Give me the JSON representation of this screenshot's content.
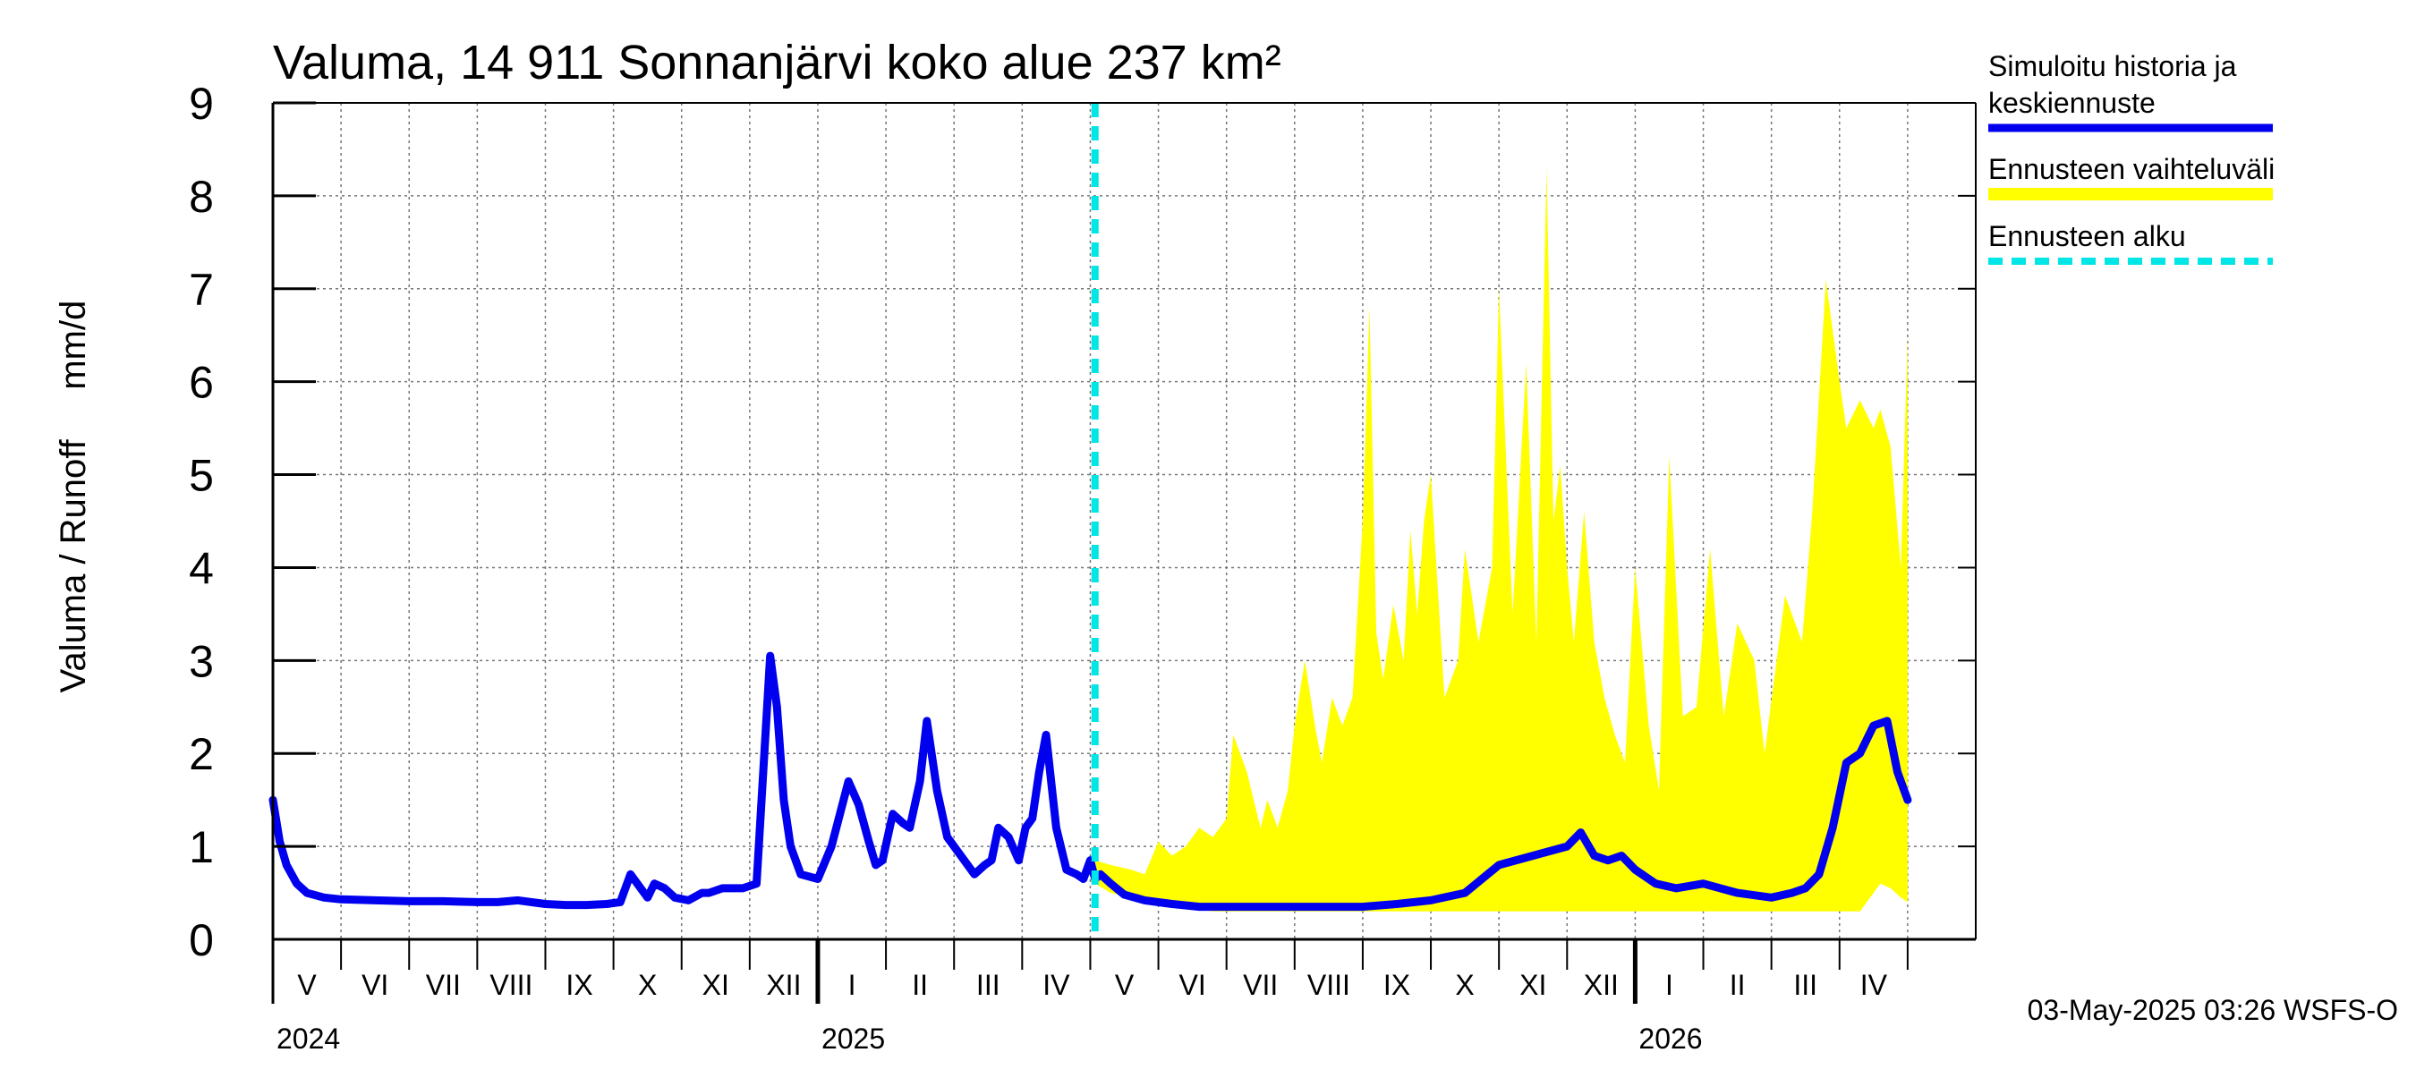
{
  "chart_data": {
    "type": "line",
    "title": "Valuma, 14 911 Sonnanjärvi koko alue 237 km²",
    "ylabel": "Valuma / Runoff     mm/d",
    "xlabel": "",
    "ylim": [
      0,
      9
    ],
    "y_ticks": [
      "0",
      "1",
      "2",
      "3",
      "4",
      "5",
      "6",
      "7",
      "8",
      "9"
    ],
    "grid": true,
    "legend_position": "right",
    "x_range_months": [
      0,
      25
    ],
    "month_labels": [
      "V",
      "VI",
      "VII",
      "VIII",
      "IX",
      "X",
      "XI",
      "XII",
      "I",
      "II",
      "III",
      "IV",
      "V",
      "VI",
      "VII",
      "VIII",
      "IX",
      "X",
      "XI",
      "XII",
      "I",
      "II",
      "III",
      "IV"
    ],
    "year_labels": [
      {
        "label": "2024",
        "month": 0
      },
      {
        "label": "2025",
        "month": 8
      },
      {
        "label": "2026",
        "month": 20
      }
    ],
    "forecast_start_month": 12.07,
    "colors": {
      "history": "#0000ee",
      "band": "#ffff00",
      "forecast_start": "#00e5e5"
    },
    "legend": {
      "history_line1": "Simuloitu historia ja",
      "history_line2": "keskiennuste",
      "band": "Ennusteen vaihteluväli",
      "start": "Ennusteen alku"
    },
    "footer": "03-May-2025 03:26 WSFS-O",
    "series": [
      {
        "name": "Simuloitu historia ja keskiennuste",
        "x": [
          0,
          0.1,
          0.2,
          0.35,
          0.5,
          0.75,
          1,
          1.5,
          2,
          2.5,
          3,
          3.3,
          3.6,
          4,
          4.3,
          4.6,
          4.9,
          5.1,
          5.25,
          5.4,
          5.5,
          5.6,
          5.75,
          5.9,
          6.1,
          6.3,
          6.4,
          6.6,
          6.9,
          7.1,
          7.3,
          7.4,
          7.5,
          7.6,
          7.75,
          8,
          8.2,
          8.45,
          8.6,
          8.75,
          8.85,
          8.95,
          9.1,
          9.25,
          9.35,
          9.5,
          9.6,
          9.75,
          9.9,
          10.1,
          10.3,
          10.45,
          10.55,
          10.65,
          10.8,
          10.95,
          11.05,
          11.15,
          11.25,
          11.35,
          11.5,
          11.65,
          11.8,
          11.9,
          12,
          12.07,
          12.15,
          12.3,
          12.5,
          12.8,
          13.2,
          13.6,
          14,
          14.5,
          15,
          15.5,
          16,
          16.5,
          17,
          17.5,
          18,
          18.5,
          19,
          19.2,
          19.4,
          19.6,
          19.8,
          20,
          20.3,
          20.6,
          21,
          21.5,
          22,
          22.3,
          22.5,
          22.7,
          22.9,
          23.1,
          23.3,
          23.5,
          23.7,
          23.85,
          24
        ],
        "values": [
          1.5,
          1.05,
          0.8,
          0.6,
          0.5,
          0.45,
          0.43,
          0.42,
          0.41,
          0.41,
          0.4,
          0.4,
          0.42,
          0.38,
          0.37,
          0.37,
          0.38,
          0.4,
          0.7,
          0.55,
          0.45,
          0.6,
          0.55,
          0.45,
          0.42,
          0.5,
          0.5,
          0.55,
          0.55,
          0.6,
          3.05,
          2.5,
          1.5,
          1.0,
          0.7,
          0.65,
          1.0,
          1.7,
          1.45,
          1.05,
          0.8,
          0.85,
          1.35,
          1.25,
          1.2,
          1.7,
          2.35,
          1.6,
          1.1,
          0.9,
          0.7,
          0.8,
          0.85,
          1.2,
          1.1,
          0.85,
          1.2,
          1.3,
          1.8,
          2.2,
          1.2,
          0.75,
          0.7,
          0.65,
          0.85,
          0.65,
          0.7,
          0.6,
          0.48,
          0.42,
          0.38,
          0.35,
          0.35,
          0.35,
          0.35,
          0.35,
          0.35,
          0.38,
          0.42,
          0.5,
          0.8,
          0.9,
          1.0,
          1.15,
          0.9,
          0.85,
          0.9,
          0.75,
          0.6,
          0.55,
          0.6,
          0.5,
          0.45,
          0.5,
          0.55,
          0.7,
          1.2,
          1.9,
          2.0,
          2.3,
          2.35,
          1.8,
          1.5
        ]
      },
      {
        "name": "Ennusteen vaihteluväli",
        "x": [
          12.07,
          12.3,
          12.6,
          12.8,
          13,
          13.2,
          13.4,
          13.6,
          13.8,
          14,
          14.1,
          14.3,
          14.5,
          14.6,
          14.75,
          14.9,
          15,
          15.15,
          15.3,
          15.4,
          15.55,
          15.7,
          15.85,
          16,
          16.1,
          16.2,
          16.3,
          16.45,
          16.6,
          16.7,
          16.8,
          16.9,
          17,
          17.2,
          17.4,
          17.5,
          17.7,
          17.9,
          18,
          18.2,
          18.4,
          18.55,
          18.7,
          18.8,
          18.9,
          19,
          19.1,
          19.25,
          19.4,
          19.55,
          19.7,
          19.85,
          20,
          20.2,
          20.35,
          20.5,
          20.7,
          20.9,
          21.1,
          21.3,
          21.5,
          21.75,
          21.9,
          22.2,
          22.45,
          22.6,
          22.8,
          23,
          23.1,
          23.3,
          23.5,
          23.6,
          23.75,
          23.9,
          24
        ],
        "low": [
          0.6,
          0.5,
          0.45,
          0.4,
          0.38,
          0.35,
          0.33,
          0.32,
          0.3,
          0.3,
          0.3,
          0.3,
          0.3,
          0.3,
          0.3,
          0.3,
          0.3,
          0.3,
          0.3,
          0.3,
          0.3,
          0.3,
          0.3,
          0.3,
          0.3,
          0.3,
          0.3,
          0.3,
          0.3,
          0.3,
          0.3,
          0.3,
          0.3,
          0.3,
          0.3,
          0.3,
          0.3,
          0.3,
          0.3,
          0.3,
          0.3,
          0.3,
          0.3,
          0.3,
          0.3,
          0.3,
          0.3,
          0.3,
          0.3,
          0.3,
          0.3,
          0.3,
          0.3,
          0.3,
          0.3,
          0.3,
          0.3,
          0.3,
          0.3,
          0.3,
          0.3,
          0.3,
          0.3,
          0.3,
          0.3,
          0.3,
          0.3,
          0.3,
          0.3,
          0.3,
          0.5,
          0.6,
          0.55,
          0.45,
          0.4
        ],
        "high": [
          0.85,
          0.8,
          0.75,
          0.7,
          1.05,
          0.9,
          1.0,
          1.2,
          1.1,
          1.3,
          2.2,
          1.8,
          1.2,
          1.5,
          1.2,
          1.6,
          2.3,
          3.0,
          2.3,
          1.9,
          2.6,
          2.3,
          2.6,
          4.5,
          6.8,
          3.3,
          2.8,
          3.6,
          3.0,
          4.4,
          3.5,
          4.5,
          5.0,
          2.6,
          3.0,
          4.2,
          3.2,
          4.0,
          7.0,
          3.5,
          6.2,
          3.2,
          8.3,
          4.5,
          5.1,
          4.0,
          3.2,
          4.6,
          3.2,
          2.6,
          2.2,
          1.9,
          4.0,
          2.3,
          1.6,
          5.2,
          2.4,
          2.5,
          4.2,
          2.4,
          3.4,
          3.0,
          2.0,
          3.7,
          3.2,
          4.6,
          7.1,
          6.0,
          5.5,
          5.8,
          5.5,
          5.7,
          5.3,
          4.0,
          6.5
        ]
      }
    ]
  }
}
